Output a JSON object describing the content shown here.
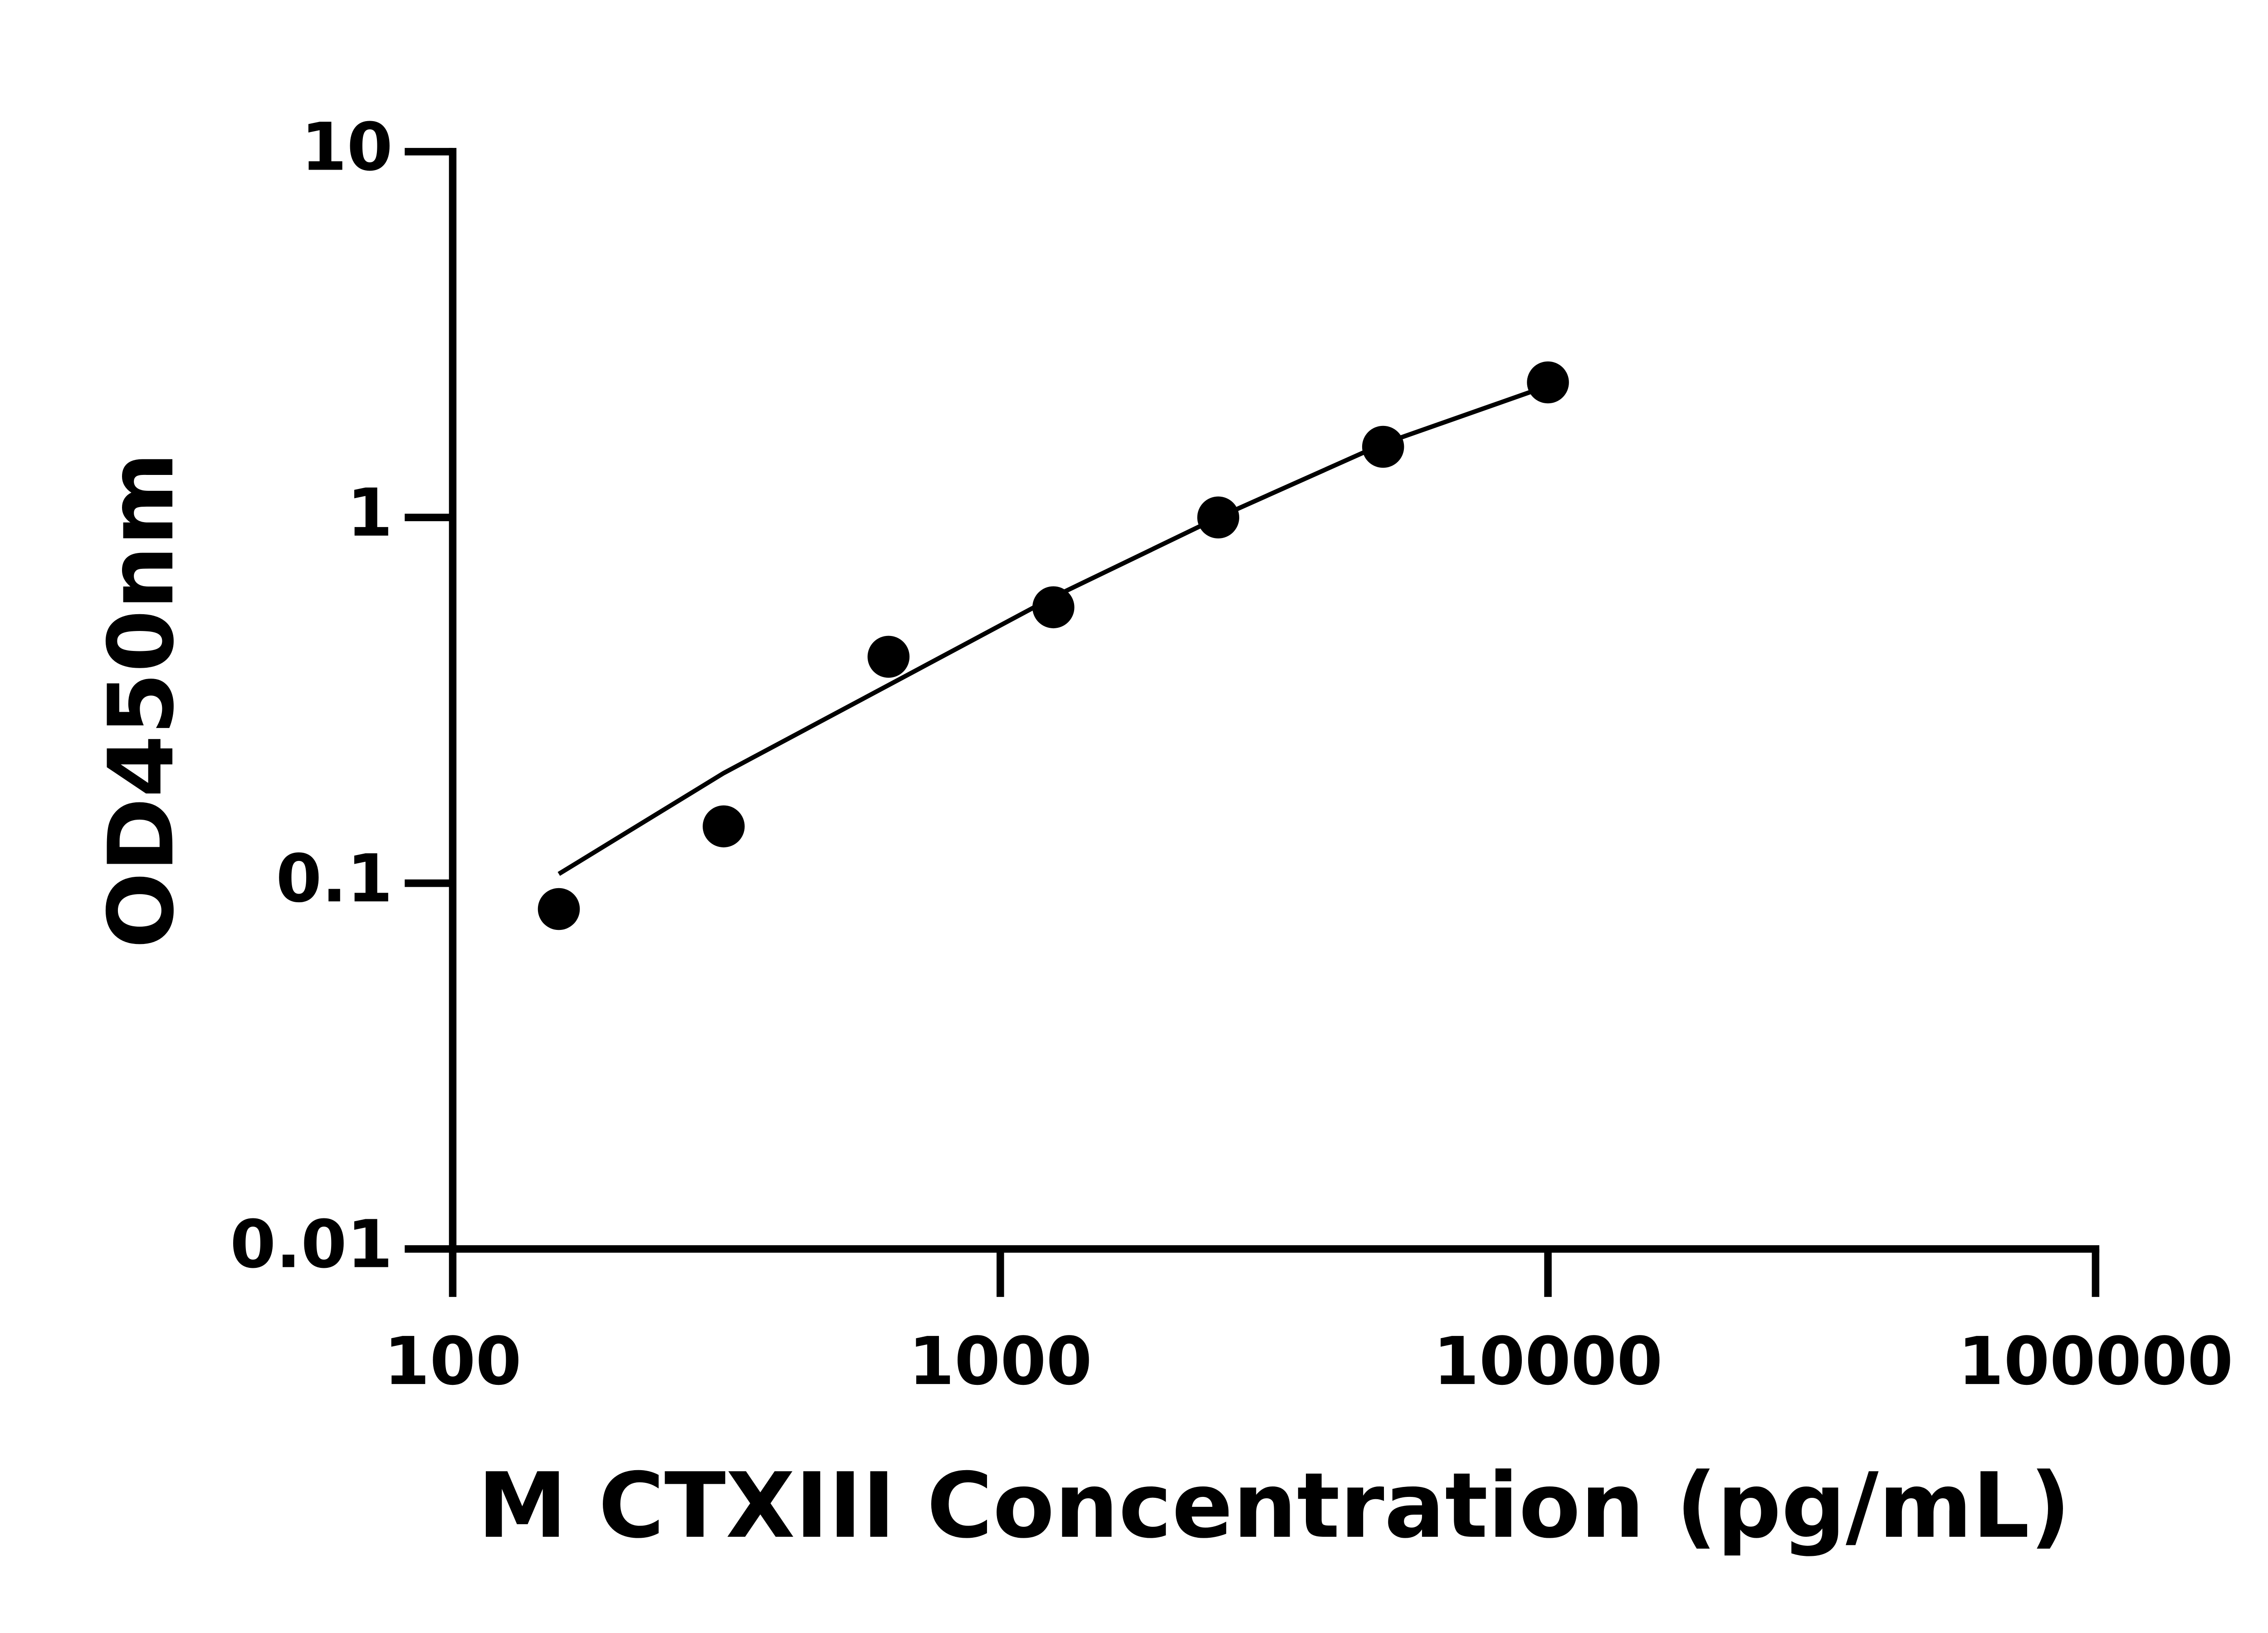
{
  "chart_data": {
    "type": "scatter",
    "xlabel": "M CTXIII Concentration (pg/mL)",
    "ylabel": "OD450nm",
    "xscale": "log",
    "yscale": "log",
    "xlim": [
      100,
      100000
    ],
    "ylim": [
      0.01,
      10
    ],
    "xticks": [
      100,
      1000,
      10000,
      100000
    ],
    "yticks": [
      0.01,
      0.1,
      1,
      10
    ],
    "x": [
      156.25,
      312.5,
      625,
      1250,
      2500,
      5000,
      10000
    ],
    "series": [
      {
        "style": "markers",
        "color": "#000000",
        "values": [
          0.085,
          0.143,
          0.416,
          0.568,
          1.0,
          1.56,
          2.34
        ]
      },
      {
        "style": "line",
        "color": "#000000",
        "values": [
          0.106,
          0.2,
          0.348,
          0.606,
          1.0,
          1.59,
          2.29
        ]
      }
    ]
  }
}
